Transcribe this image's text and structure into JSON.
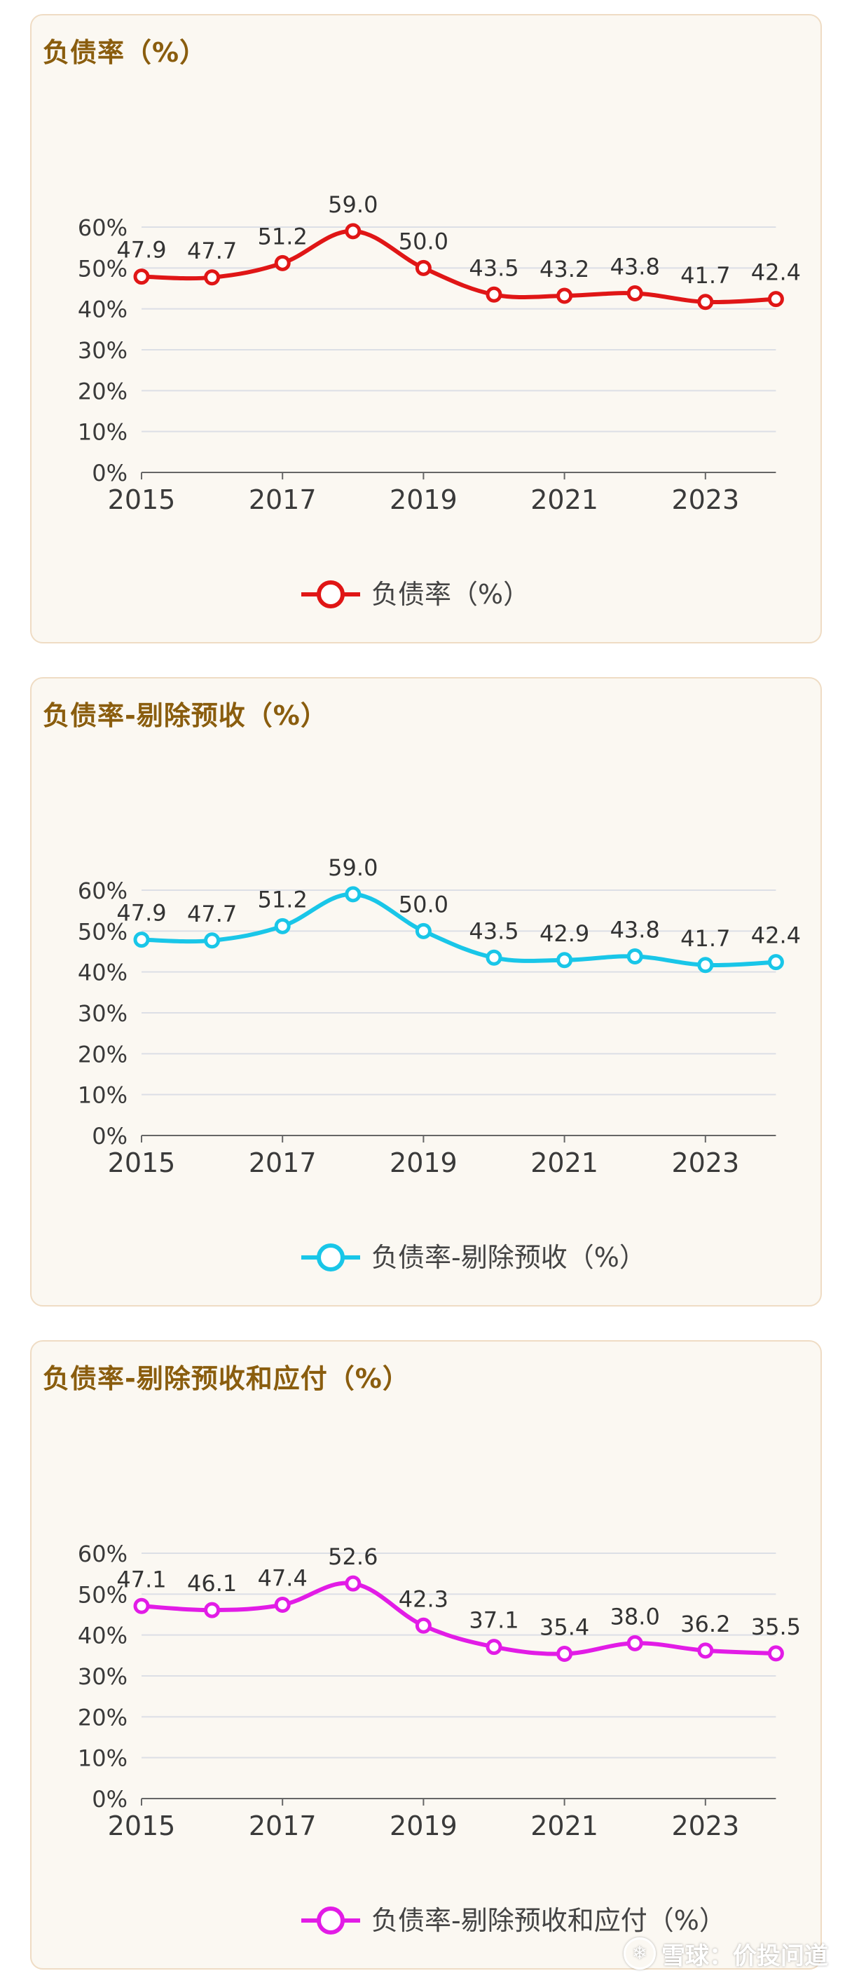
{
  "panels": [
    {
      "title": "负债率（%）",
      "legend": "负债率（%）",
      "color": "#e01616",
      "ylim": [
        0,
        60
      ],
      "yticks": [
        "0%",
        "10%",
        "20%",
        "30%",
        "40%",
        "50%",
        "60%"
      ],
      "xticks": [
        "2015",
        "2017",
        "2019",
        "2021",
        "2023"
      ]
    },
    {
      "title": "负债率-剔除预收（%）",
      "legend": "负债率-剔除预收（%）",
      "color": "#19c6e8",
      "ylim": [
        0,
        60
      ],
      "yticks": [
        "0%",
        "10%",
        "20%",
        "30%",
        "40%",
        "50%",
        "60%"
      ],
      "xticks": [
        "2015",
        "2017",
        "2019",
        "2021",
        "2023"
      ]
    },
    {
      "title": "负债率-剔除预收和应付（%）",
      "legend": "负债率-剔除预收和应付（%）",
      "color": "#e21ce6",
      "ylim": [
        0,
        60
      ],
      "yticks": [
        "0%",
        "10%",
        "20%",
        "30%",
        "40%",
        "50%",
        "60%"
      ],
      "xticks": [
        "2015",
        "2017",
        "2019",
        "2021",
        "2023"
      ]
    }
  ],
  "chart_data": [
    {
      "type": "line",
      "title": "负债率（%）",
      "x": [
        2015,
        2016,
        2017,
        2018,
        2019,
        2020,
        2021,
        2022,
        2023,
        2024
      ],
      "series": [
        {
          "name": "负债率（%）",
          "values": [
            47.9,
            47.7,
            51.2,
            59.0,
            50.0,
            43.5,
            43.2,
            43.8,
            41.7,
            42.4
          ]
        }
      ],
      "labels": [
        "47.9",
        "47.7",
        "51.2",
        "59.0",
        "50.0",
        "43.5",
        "43.2",
        "43.8",
        "41.7",
        "42.4"
      ],
      "ylim": [
        0,
        60
      ],
      "grid": true,
      "legend": "bottom-center"
    },
    {
      "type": "line",
      "title": "负债率-剔除预收（%）",
      "x": [
        2015,
        2016,
        2017,
        2018,
        2019,
        2020,
        2021,
        2022,
        2023,
        2024
      ],
      "series": [
        {
          "name": "负债率-剔除预收（%）",
          "values": [
            47.9,
            47.7,
            51.2,
            59.0,
            50.0,
            43.5,
            42.9,
            43.8,
            41.7,
            42.4
          ]
        }
      ],
      "labels": [
        "47.9",
        "47.7",
        "51.2",
        "59.0",
        "50.0",
        "43.5",
        "42.9",
        "43.8",
        "41.7",
        "42.4"
      ],
      "ylim": [
        0,
        60
      ],
      "grid": true,
      "legend": "bottom-center"
    },
    {
      "type": "line",
      "title": "负债率-剔除预收和应付（%）",
      "x": [
        2015,
        2016,
        2017,
        2018,
        2019,
        2020,
        2021,
        2022,
        2023,
        2024
      ],
      "series": [
        {
          "name": "负债率-剔除预收和应付（%）",
          "values": [
            47.1,
            46.1,
            47.4,
            52.6,
            42.3,
            37.1,
            35.4,
            38.0,
            36.2,
            35.5
          ]
        }
      ],
      "labels": [
        "47.1",
        "46.1",
        "47.4",
        "52.6",
        "42.3",
        "37.1",
        "35.4",
        "38.0",
        "36.2",
        "35.5"
      ],
      "ylim": [
        0,
        60
      ],
      "grid": true,
      "legend": "bottom-center"
    }
  ],
  "watermark": {
    "logo": "❄",
    "text": "雪球：价投问道"
  }
}
